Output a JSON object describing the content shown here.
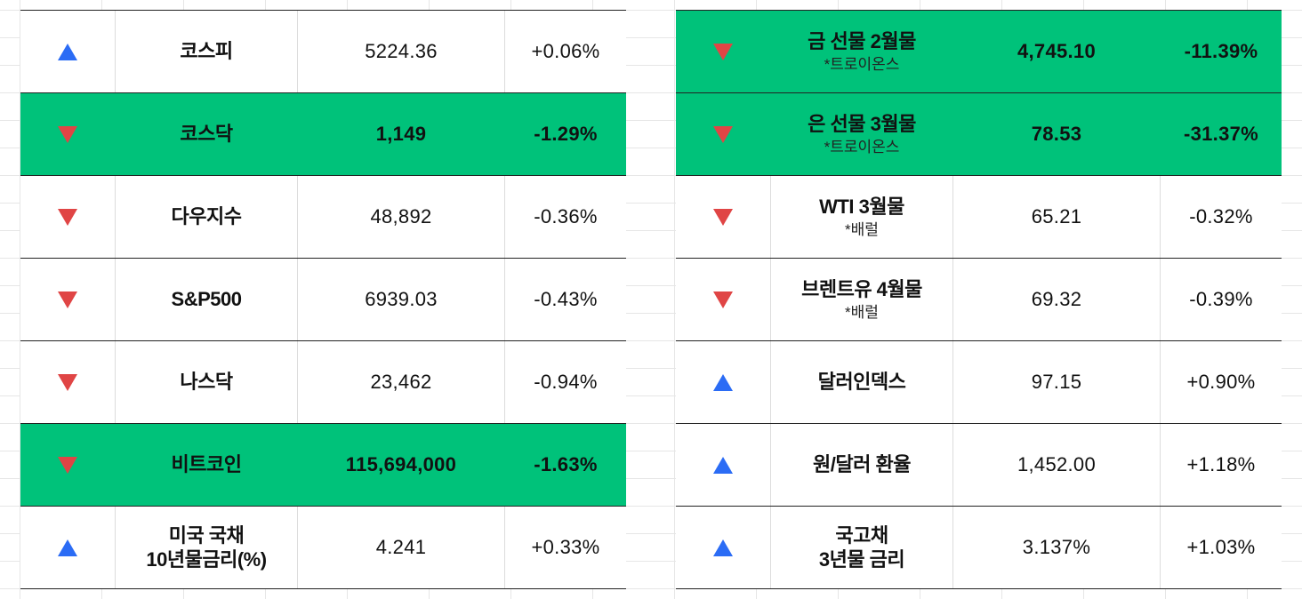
{
  "colors": {
    "highlight_bg": "#00c27a",
    "up_arrow": "#2b6cf5",
    "down_arrow": "#e04545"
  },
  "left": [
    {
      "direction": "up-triangle-icon",
      "name": "코스피",
      "sub": "",
      "value": "5224.36",
      "change": "+0.06%",
      "highlight": false
    },
    {
      "direction": "down-triangle-icon",
      "name": "코스닥",
      "sub": "",
      "value": "1,149",
      "change": "-1.29%",
      "highlight": true
    },
    {
      "direction": "down-triangle-icon",
      "name": "다우지수",
      "sub": "",
      "value": "48,892",
      "change": "-0.36%",
      "highlight": false
    },
    {
      "direction": "down-triangle-icon",
      "name": "S&P500",
      "sub": "",
      "value": "6939.03",
      "change": "-0.43%",
      "highlight": false
    },
    {
      "direction": "down-triangle-icon",
      "name": "나스닥",
      "sub": "",
      "value": "23,462",
      "change": "-0.94%",
      "highlight": false
    },
    {
      "direction": "down-triangle-icon",
      "name": "비트코인",
      "sub": "",
      "value": "115,694,000",
      "change": "-1.63%",
      "highlight": true
    },
    {
      "direction": "up-triangle-icon",
      "name": "미국 국채\n10년물금리(%)",
      "sub": "",
      "value": "4.241",
      "change": "+0.33%",
      "highlight": false
    }
  ],
  "right": [
    {
      "direction": "down-triangle-icon",
      "name": "금 선물 2월물",
      "sub": "*트로이온스",
      "value": "4,745.10",
      "change": "-11.39%",
      "highlight": true
    },
    {
      "direction": "down-triangle-icon",
      "name": "은 선물 3월물",
      "sub": "*트로이온스",
      "value": "78.53",
      "change": "-31.37%",
      "highlight": true
    },
    {
      "direction": "down-triangle-icon",
      "name": "WTI 3월물",
      "sub": "*배럴",
      "value": "65.21",
      "change": "-0.32%",
      "highlight": false
    },
    {
      "direction": "down-triangle-icon",
      "name": "브렌트유 4월물",
      "sub": "*배럴",
      "value": "69.32",
      "change": "-0.39%",
      "highlight": false
    },
    {
      "direction": "up-triangle-icon",
      "name": "달러인덱스",
      "sub": "",
      "value": "97.15",
      "change": "+0.90%",
      "highlight": false
    },
    {
      "direction": "up-triangle-icon",
      "name": "원/달러 환율",
      "sub": "",
      "value": "1,452.00",
      "change": "+1.18%",
      "highlight": false
    },
    {
      "direction": "up-triangle-icon",
      "name": "국고채\n3년물 금리",
      "sub": "",
      "value": "3.137%",
      "change": "+1.03%",
      "highlight": false
    }
  ]
}
